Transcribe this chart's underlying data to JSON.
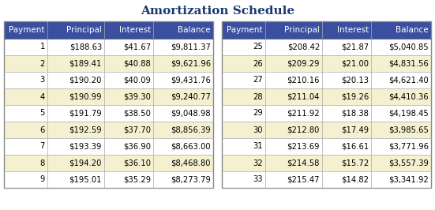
{
  "title": "Amortization Schedule",
  "title_color": "#1a3a6e",
  "title_fontsize": 11,
  "header_bg": "#3a4fa0",
  "header_fg": "#ffffff",
  "row_bg_odd": "#ffffff",
  "row_bg_even": "#f5f0d0",
  "border_color": "#aaaaaa",
  "columns": [
    "Payment",
    "Principal",
    "Interest",
    "Balance"
  ],
  "left_data": [
    [
      "1",
      "$188.63",
      "$41.67",
      "$9,811.37"
    ],
    [
      "2",
      "$189.41",
      "$40.88",
      "$9,621.96"
    ],
    [
      "3",
      "$190.20",
      "$40.09",
      "$9,431.76"
    ],
    [
      "4",
      "$190.99",
      "$39.30",
      "$9,240.77"
    ],
    [
      "5",
      "$191.79",
      "$38.50",
      "$9,048.98"
    ],
    [
      "6",
      "$192.59",
      "$37.70",
      "$8,856.39"
    ],
    [
      "7",
      "$193.39",
      "$36.90",
      "$8,663.00"
    ],
    [
      "8",
      "$194.20",
      "$36.10",
      "$8,468.80"
    ],
    [
      "9",
      "$195.01",
      "$35.29",
      "$8,273.79"
    ]
  ],
  "right_data": [
    [
      "25",
      "$208.42",
      "$21.87",
      "$5,040.85"
    ],
    [
      "26",
      "$209.29",
      "$21.00",
      "$4,831.56"
    ],
    [
      "27",
      "$210.16",
      "$20.13",
      "$4,621.40"
    ],
    [
      "28",
      "$211.04",
      "$19.26",
      "$4,410.36"
    ],
    [
      "29",
      "$211.92",
      "$18.38",
      "$4,198.45"
    ],
    [
      "30",
      "$212.80",
      "$17.49",
      "$3,985.65"
    ],
    [
      "31",
      "$213.69",
      "$16.61",
      "$3,771.96"
    ],
    [
      "32",
      "$214.58",
      "$15.72",
      "$3,557.39"
    ],
    [
      "33",
      "$215.47",
      "$14.82",
      "$3,341.92"
    ]
  ]
}
